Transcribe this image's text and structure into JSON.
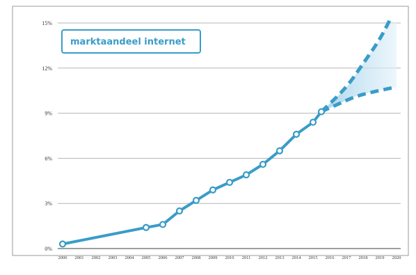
{
  "chart_data": {
    "type": "line",
    "title": "",
    "xlabel": "",
    "ylabel": "",
    "legend": {
      "label": "marktaandeel internet",
      "placement": "top-left"
    },
    "x_ticks": [
      "2000",
      "2001",
      "2002",
      "2003",
      "2004",
      "2005",
      "2006",
      "2007",
      "2008",
      "2009",
      "2010",
      "2011",
      "2012",
      "2013",
      "2014",
      "2015",
      "2016",
      "2017",
      "2018",
      "2019",
      "2020"
    ],
    "y_ticks": [
      "0%",
      "3%",
      "6%",
      "9%",
      "12%",
      "15%"
    ],
    "xlim": [
      2000,
      2020
    ],
    "ylim": [
      0,
      15
    ],
    "grid": {
      "horizontal": true,
      "vertical": false
    },
    "series": [
      {
        "name": "marktaandeel internet",
        "style": "solid-with-markers",
        "color": "#3a9cc8",
        "points": [
          [
            2000,
            0.3
          ],
          [
            2005,
            1.4
          ],
          [
            2006,
            1.6
          ],
          [
            2007,
            2.5
          ],
          [
            2008,
            3.2
          ],
          [
            2009,
            3.9
          ],
          [
            2010,
            4.4
          ],
          [
            2011,
            4.9
          ],
          [
            2012,
            5.6
          ],
          [
            2013,
            6.5
          ],
          [
            2014,
            7.6
          ],
          [
            2015,
            8.4
          ]
        ]
      }
    ],
    "projection": {
      "style": "dashed",
      "color": "#3a9cc8",
      "fill": "#bfe0f2",
      "start": [
        2015.5,
        9.1
      ],
      "upper": [
        [
          2015.5,
          9.1
        ],
        [
          2017,
          10.7
        ],
        [
          2018,
          12.3
        ],
        [
          2019,
          13.9
        ],
        [
          2019.6,
          15.2
        ]
      ],
      "lower": [
        [
          2015.5,
          9.1
        ],
        [
          2016.5,
          9.6
        ],
        [
          2017.5,
          10.1
        ],
        [
          2018.5,
          10.4
        ],
        [
          2019.8,
          10.7
        ]
      ]
    }
  }
}
